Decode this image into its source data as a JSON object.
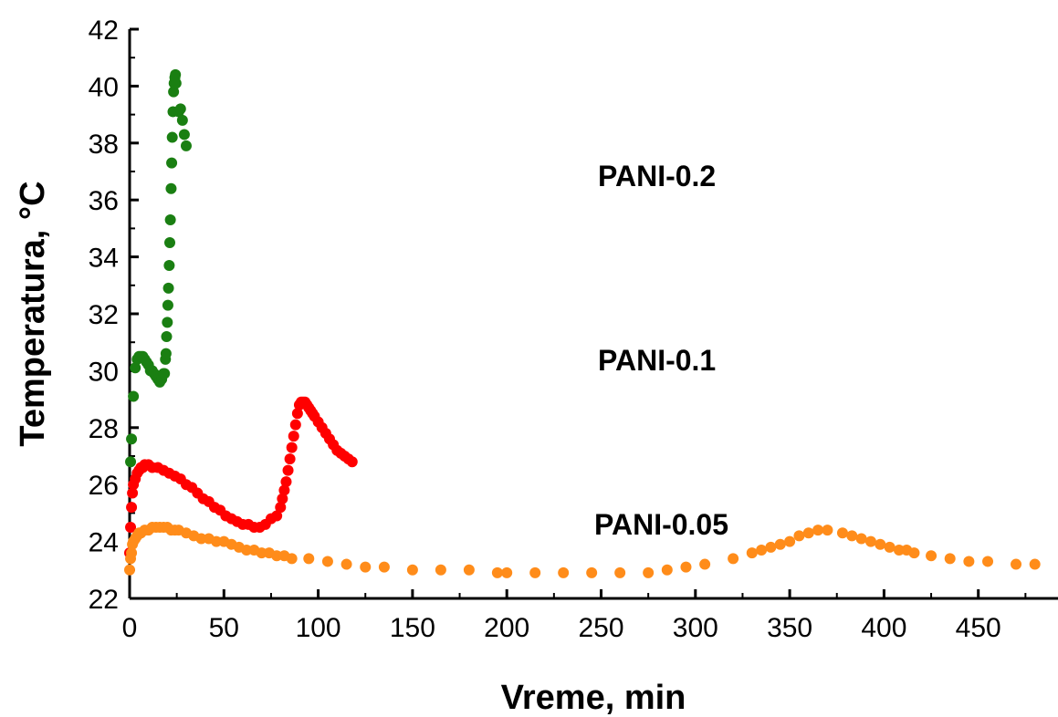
{
  "chart_data": {
    "type": "scatter",
    "xlabel": "Vreme, min",
    "ylabel": "Temperatura, °C",
    "xlim": [
      0,
      480
    ],
    "ylim": [
      22,
      42
    ],
    "x_ticks": [
      0,
      50,
      100,
      150,
      200,
      250,
      300,
      350,
      400,
      450
    ],
    "y_ticks": [
      22,
      24,
      26,
      28,
      30,
      32,
      34,
      36,
      38,
      40,
      42
    ],
    "grid": false,
    "legend": "none",
    "annotations": [
      {
        "text": "PANI-0.2",
        "series": "PANI-0.2"
      },
      {
        "text": "PANI-0.1",
        "series": "PANI-0.1"
      },
      {
        "text": "PANI-0.05",
        "series": "PANI-0.05"
      }
    ],
    "series": [
      {
        "name": "PANI-0.2",
        "color": "#1a7f12",
        "points": [
          [
            0.5,
            26.8
          ],
          [
            1,
            27.6
          ],
          [
            2,
            29.1
          ],
          [
            3,
            30.1
          ],
          [
            4,
            30.4
          ],
          [
            5,
            30.5
          ],
          [
            6,
            30.5
          ],
          [
            7,
            30.5
          ],
          [
            8,
            30.4
          ],
          [
            9,
            30.3
          ],
          [
            10,
            30.2
          ],
          [
            11,
            30.0
          ],
          [
            12,
            30.0
          ],
          [
            13,
            29.9
          ],
          [
            14,
            29.8
          ],
          [
            15,
            29.7
          ],
          [
            16,
            29.6
          ],
          [
            17,
            29.7
          ],
          [
            18,
            29.9
          ],
          [
            18.5,
            29.9
          ],
          [
            19,
            30.4
          ],
          [
            19.3,
            30.6
          ],
          [
            19.6,
            31.2
          ],
          [
            20,
            31.7
          ],
          [
            20.3,
            32.3
          ],
          [
            20.6,
            32.9
          ],
          [
            21,
            33.7
          ],
          [
            21.3,
            34.5
          ],
          [
            21.6,
            35.3
          ],
          [
            22,
            36.4
          ],
          [
            22.3,
            37.3
          ],
          [
            22.6,
            38.2
          ],
          [
            23,
            39.1
          ],
          [
            23.3,
            39.8
          ],
          [
            23.6,
            40.1
          ],
          [
            24,
            40.3
          ],
          [
            24.3,
            40.4
          ],
          [
            24.6,
            40.1
          ],
          [
            26,
            39.1
          ],
          [
            27,
            39.2
          ],
          [
            28,
            38.8
          ],
          [
            29,
            38.3
          ],
          [
            30,
            37.9
          ]
        ]
      },
      {
        "name": "PANI-0.1",
        "color": "#ff0000",
        "points": [
          [
            0,
            23.6
          ],
          [
            0.5,
            24.5
          ],
          [
            1,
            25.2
          ],
          [
            1.5,
            25.7
          ],
          [
            2,
            26.0
          ],
          [
            3,
            26.2
          ],
          [
            4,
            26.4
          ],
          [
            5,
            26.5
          ],
          [
            6,
            26.6
          ],
          [
            7,
            26.6
          ],
          [
            8,
            26.7
          ],
          [
            10,
            26.7
          ],
          [
            12,
            26.6
          ],
          [
            15,
            26.6
          ],
          [
            18,
            26.5
          ],
          [
            21,
            26.4
          ],
          [
            24,
            26.3
          ],
          [
            27,
            26.2
          ],
          [
            30,
            26.0
          ],
          [
            33,
            25.9
          ],
          [
            36,
            25.7
          ],
          [
            39,
            25.5
          ],
          [
            42,
            25.4
          ],
          [
            45,
            25.2
          ],
          [
            48,
            25.1
          ],
          [
            51,
            24.9
          ],
          [
            54,
            24.8
          ],
          [
            57,
            24.7
          ],
          [
            60,
            24.6
          ],
          [
            63,
            24.6
          ],
          [
            66,
            24.5
          ],
          [
            69,
            24.5
          ],
          [
            72,
            24.6
          ],
          [
            75,
            24.8
          ],
          [
            78,
            24.9
          ],
          [
            80,
            25.2
          ],
          [
            81,
            25.5
          ],
          [
            82,
            25.8
          ],
          [
            83,
            26.1
          ],
          [
            84,
            26.5
          ],
          [
            85,
            26.9
          ],
          [
            86,
            27.3
          ],
          [
            87,
            27.7
          ],
          [
            88,
            28.1
          ],
          [
            89,
            28.5
          ],
          [
            90,
            28.8
          ],
          [
            91,
            28.9
          ],
          [
            92,
            28.9
          ],
          [
            93,
            28.9
          ],
          [
            94,
            28.8
          ],
          [
            95,
            28.7
          ],
          [
            96,
            28.6
          ],
          [
            97,
            28.5
          ],
          [
            98,
            28.4
          ],
          [
            100,
            28.2
          ],
          [
            102,
            28.0
          ],
          [
            104,
            27.8
          ],
          [
            106,
            27.6
          ],
          [
            108,
            27.4
          ],
          [
            110,
            27.2
          ],
          [
            112,
            27.1
          ],
          [
            114,
            27.0
          ],
          [
            116,
            26.9
          ],
          [
            118,
            26.8
          ]
        ]
      },
      {
        "name": "PANI-0.05",
        "color": "#ff8c1a",
        "points": [
          [
            0,
            23.0
          ],
          [
            0.5,
            23.4
          ],
          [
            1,
            23.6
          ],
          [
            1.5,
            23.9
          ],
          [
            2,
            24.0
          ],
          [
            3,
            24.1
          ],
          [
            4,
            24.2
          ],
          [
            5,
            24.3
          ],
          [
            6,
            24.3
          ],
          [
            8,
            24.4
          ],
          [
            10,
            24.4
          ],
          [
            12,
            24.5
          ],
          [
            14,
            24.5
          ],
          [
            16,
            24.5
          ],
          [
            18,
            24.5
          ],
          [
            20,
            24.5
          ],
          [
            22,
            24.4
          ],
          [
            24,
            24.4
          ],
          [
            26,
            24.4
          ],
          [
            30,
            24.3
          ],
          [
            34,
            24.2
          ],
          [
            38,
            24.1
          ],
          [
            42,
            24.1
          ],
          [
            46,
            24.0
          ],
          [
            50,
            24.0
          ],
          [
            54,
            23.9
          ],
          [
            58,
            23.8
          ],
          [
            62,
            23.7
          ],
          [
            66,
            23.7
          ],
          [
            70,
            23.6
          ],
          [
            74,
            23.6
          ],
          [
            78,
            23.5
          ],
          [
            82,
            23.5
          ],
          [
            86,
            23.4
          ],
          [
            95,
            23.4
          ],
          [
            105,
            23.3
          ],
          [
            115,
            23.2
          ],
          [
            125,
            23.1
          ],
          [
            135,
            23.1
          ],
          [
            150,
            23.0
          ],
          [
            165,
            23.0
          ],
          [
            180,
            23.0
          ],
          [
            195,
            22.9
          ],
          [
            200,
            22.9
          ],
          [
            215,
            22.9
          ],
          [
            230,
            22.9
          ],
          [
            245,
            22.9
          ],
          [
            260,
            22.9
          ],
          [
            275,
            22.9
          ],
          [
            285,
            23.0
          ],
          [
            295,
            23.1
          ],
          [
            305,
            23.2
          ],
          [
            320,
            23.4
          ],
          [
            330,
            23.6
          ],
          [
            335,
            23.7
          ],
          [
            340,
            23.8
          ],
          [
            345,
            23.9
          ],
          [
            350,
            24.0
          ],
          [
            355,
            24.2
          ],
          [
            360,
            24.3
          ],
          [
            365,
            24.4
          ],
          [
            370,
            24.4
          ],
          [
            378,
            24.3
          ],
          [
            383,
            24.2
          ],
          [
            388,
            24.1
          ],
          [
            393,
            24.0
          ],
          [
            398,
            23.9
          ],
          [
            403,
            23.8
          ],
          [
            408,
            23.7
          ],
          [
            412,
            23.7
          ],
          [
            416,
            23.6
          ],
          [
            425,
            23.5
          ],
          [
            435,
            23.4
          ],
          [
            445,
            23.3
          ],
          [
            455,
            23.3
          ],
          [
            470,
            23.2
          ],
          [
            480,
            23.2
          ]
        ]
      }
    ]
  }
}
